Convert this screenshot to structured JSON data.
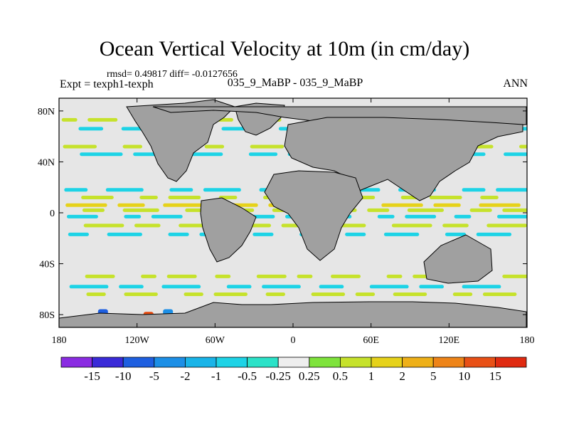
{
  "chart_data": {
    "type": "heatmap",
    "title": "Ocean Vertical Velocity at 10m (in cm/day)",
    "stats_text": "rmsd= 0.49817 diff= -0.0127656",
    "left_label": "Expt = texph1-texph",
    "center_label": "035_9_MaBP - 035_9_MaBP",
    "right_label": "ANN",
    "x_ticks": [
      "180",
      "120W",
      "60W",
      "0",
      "60E",
      "120E",
      "180"
    ],
    "y_ticks": [
      "80N",
      "40N",
      "0",
      "40S",
      "80S"
    ],
    "xlim": [
      -180,
      180
    ],
    "ylim": [
      -90,
      90
    ],
    "colorbar": {
      "labels": [
        "-15",
        "-10",
        "-5",
        "-2",
        "-1",
        "-0.5",
        "-0.25",
        "0.25",
        "0.5",
        "1",
        "2",
        "5",
        "10",
        "15"
      ],
      "colors": [
        "#8a2be2",
        "#3a2ad8",
        "#1e5fe0",
        "#1c8fe6",
        "#19b4e8",
        "#1dd3e6",
        "#2be2c8",
        "#eeeeee",
        "#7ee33b",
        "#c6e22b",
        "#e6d21a",
        "#eeb018",
        "#ee8418",
        "#e85016",
        "#e02a10"
      ]
    },
    "colors": {
      "land": "#a0a0a0",
      "ocean_background": "#e6e6e6",
      "upwelling": "#c6e22b",
      "downwelling": "#1dd3e6"
    }
  }
}
